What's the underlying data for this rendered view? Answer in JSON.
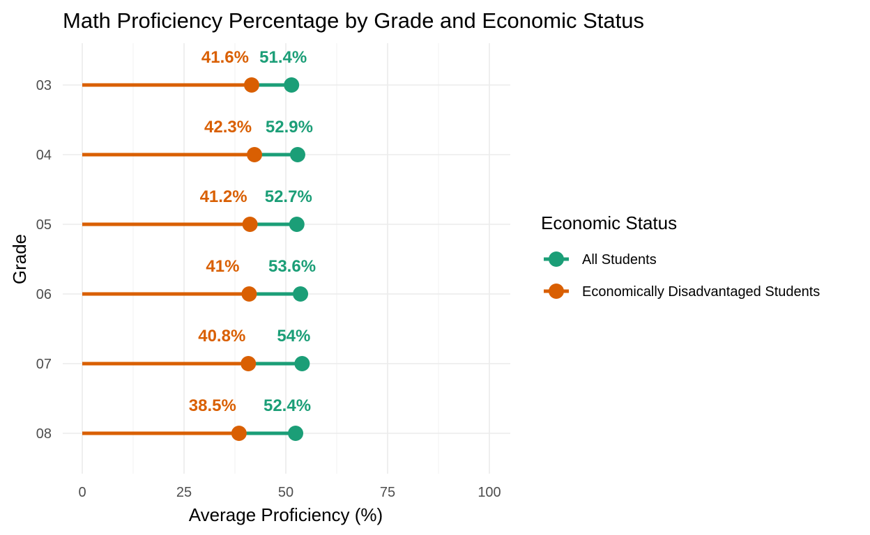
{
  "chart_data": {
    "type": "dumbbell",
    "title": "Math Proficiency Percentage by Grade and Economic Status",
    "xlabel": "Average Proficiency (%)",
    "ylabel": "Grade",
    "xlim": [
      0,
      105
    ],
    "x_ticks": [
      0,
      25,
      50,
      75,
      100
    ],
    "categories": [
      "03",
      "04",
      "05",
      "06",
      "07",
      "08"
    ],
    "series": [
      {
        "name": "All Students",
        "color": "#1b9e77",
        "values": [
          51.4,
          52.9,
          52.7,
          53.6,
          54,
          52.4
        ],
        "labels": [
          "51.4%",
          "52.9%",
          "52.7%",
          "53.6%",
          "54%",
          "52.4%"
        ]
      },
      {
        "name": "Economically Disadvantaged Students",
        "color": "#d95f02",
        "values": [
          41.6,
          42.3,
          41.2,
          41,
          40.8,
          38.5
        ],
        "labels": [
          "41.6%",
          "42.3%",
          "41.2%",
          "41%",
          "40.8%",
          "38.5%"
        ]
      }
    ],
    "legend": {
      "title": "Economic Status",
      "position": "right"
    },
    "grid": true
  }
}
